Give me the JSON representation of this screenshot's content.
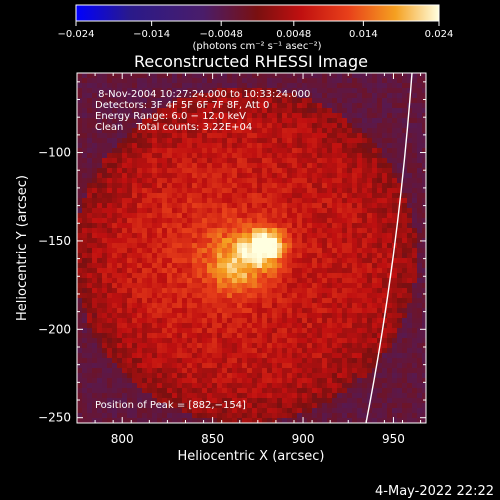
{
  "chart_data": {
    "type": "heatmap",
    "title": "Reconstructed RHESSI Image",
    "xlabel": "Heliocentric X (arcsec)",
    "ylabel": "Heliocentric Y (arcsec)",
    "xlim": [
      775,
      968
    ],
    "ylim": [
      -253,
      -55
    ],
    "x_ticks": [
      800,
      850,
      900,
      950
    ],
    "y_ticks": [
      -100,
      -150,
      -200,
      -250
    ],
    "x_tick_labels": [
      "800",
      "850",
      "900",
      "950"
    ],
    "y_tick_labels": [
      "−100",
      "−150",
      "−200",
      "−250"
    ],
    "colorbar": {
      "range": [
        -0.024,
        0.024
      ],
      "ticks": [
        -0.024,
        -0.014,
        -0.0048,
        0.0048,
        0.014,
        0.024
      ],
      "tick_labels": [
        "−0.024",
        "−0.014",
        "−0.0048",
        "0.0048",
        "0.014",
        "0.024"
      ],
      "unit_label": "(photons cm⁻² s⁻¹ asec⁻²)",
      "colors": [
        "#0000ff",
        "#2a1a8a",
        "#4a1d6a",
        "#7a1010",
        "#c01010",
        "#e8401a",
        "#f5a020",
        "#ffffe0"
      ]
    },
    "annotations": [
      " 8-Nov-2004 10:27:24.000 to 10:33:24.000",
      "Detectors: 3F 4F 5F 6F 7F 8F, Att 0",
      "Energy Range: 6.0 − 12.0 keV",
      "Clean    Total counts: 3.22E+04"
    ],
    "peak_label": "Position of Peak = [882,−154]",
    "peak": {
      "x": 882,
      "y": -154,
      "value": 0.024
    },
    "timestamp": "4-May-2022 22:22",
    "background_value": 0.006,
    "sources": [
      {
        "x": 880,
        "y": -152,
        "value": 0.018,
        "sigma": 7
      },
      {
        "x": 865,
        "y": -162,
        "value": 0.012,
        "sigma": 12
      },
      {
        "x": 850,
        "y": -155,
        "value": 0.004,
        "sigma": 30
      }
    ]
  }
}
